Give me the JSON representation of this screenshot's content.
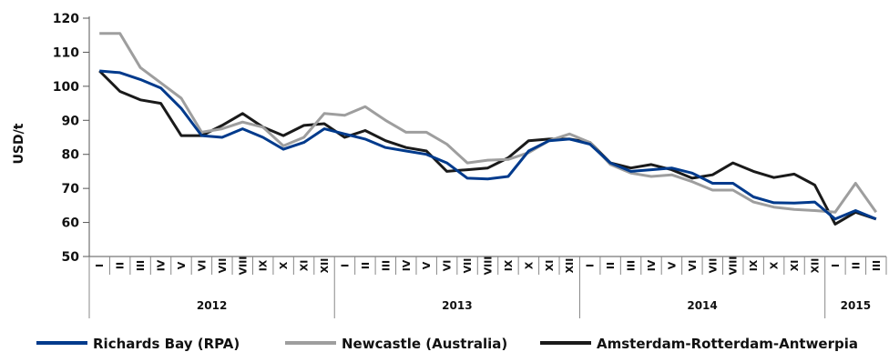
{
  "chart_data": {
    "type": "line",
    "ylabel": "USD/t",
    "ylim": [
      50,
      120
    ],
    "yticks": [
      50,
      60,
      70,
      80,
      90,
      100,
      110,
      120
    ],
    "grid": false,
    "legend_position": "bottom",
    "categories": [
      "I",
      "II",
      "III",
      "IV",
      "V",
      "VI",
      "VII",
      "VIII",
      "IX",
      "X",
      "XI",
      "XII",
      "I",
      "II",
      "III",
      "IV",
      "V",
      "VI",
      "VII",
      "VIII",
      "IX",
      "X",
      "XI",
      "XII",
      "I",
      "II",
      "III",
      "IV",
      "V",
      "VI",
      "VII",
      "VIII",
      "IX",
      "X",
      "XI",
      "XII",
      "I",
      "II",
      "III"
    ],
    "years": [
      {
        "label": "2012",
        "start": 0,
        "count": 12
      },
      {
        "label": "2013",
        "start": 12,
        "count": 12
      },
      {
        "label": "2014",
        "start": 24,
        "count": 12
      },
      {
        "label": "2015",
        "start": 36,
        "count": 3
      }
    ],
    "series": [
      {
        "name": "Richards Bay (RPA)",
        "color": "#003a8c",
        "values": [
          104.5,
          104,
          102,
          99.5,
          93.5,
          85.5,
          85,
          87.5,
          85,
          81.5,
          83.5,
          87.5,
          86,
          84.5,
          82,
          81,
          80,
          77.5,
          73,
          72.8,
          73.5,
          81,
          84,
          84.5,
          83,
          77.5,
          75,
          75.5,
          76,
          74.5,
          71.5,
          71.5,
          67.5,
          65.8,
          65.7,
          66,
          61,
          63.5,
          61
        ]
      },
      {
        "name": "Newcastle (Australia)",
        "color": "#9e9e9e",
        "values": [
          115.5,
          115.5,
          105.5,
          101,
          96.5,
          86.5,
          87.5,
          89.5,
          88,
          82.5,
          85,
          92,
          91.5,
          94,
          90,
          86.5,
          86.5,
          83,
          77.5,
          78.3,
          78.5,
          80.5,
          84,
          86,
          83.5,
          77,
          74.5,
          73.5,
          74,
          72,
          69.5,
          69.5,
          66,
          64.5,
          63.8,
          63.5,
          63,
          71.5,
          63
        ]
      },
      {
        "name": "Amsterdam-Rotterdam-Antwerpia",
        "color": "#1a1a1a",
        "values": [
          104.5,
          98.5,
          96,
          95,
          85.5,
          85.5,
          88.5,
          92,
          88,
          85.5,
          88.5,
          89,
          85,
          87,
          84,
          82,
          81,
          75,
          75.5,
          76,
          79,
          84,
          84.5,
          84.5,
          83.5,
          77.5,
          76,
          77,
          75.5,
          73,
          74,
          77.5,
          75,
          73.2,
          74.2,
          71,
          59.5,
          63,
          61
        ]
      }
    ]
  }
}
